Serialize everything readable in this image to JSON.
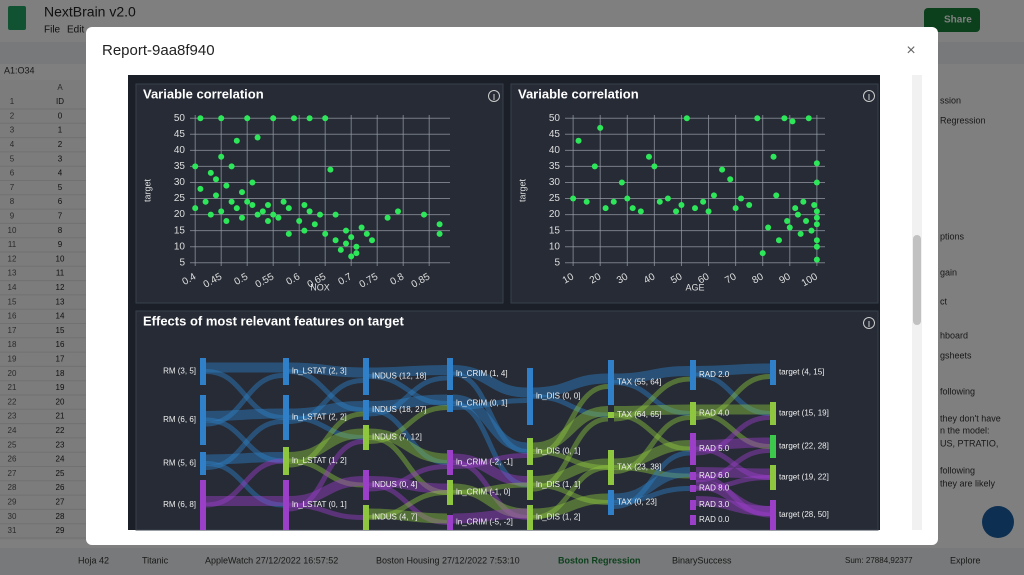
{
  "app": {
    "title": "NextBrain v2.0",
    "menu": [
      "File",
      "Edit"
    ],
    "share": "Share",
    "cell_ref": "A1:O34",
    "column": "A"
  },
  "sheet": {
    "rows": [
      1,
      2,
      3,
      4,
      5,
      6,
      7,
      8,
      9,
      10,
      11,
      12,
      13,
      14,
      15,
      16,
      17,
      18,
      19,
      20,
      21,
      22,
      23,
      24,
      25,
      26,
      27,
      28,
      29,
      30,
      31
    ],
    "ids": [
      "ID",
      0,
      1,
      2,
      3,
      4,
      5,
      6,
      7,
      8,
      9,
      10,
      11,
      12,
      13,
      14,
      15,
      16,
      17,
      18,
      19,
      20,
      21,
      22,
      23,
      24,
      25,
      26,
      27,
      28,
      29
    ]
  },
  "tabs": [
    "Hoja 42",
    "Titanic",
    "AppleWatch 27/12/2022 16:57:52",
    "Boston Housing 27/12/2022 7:53:10",
    "Boston Regression",
    "BinarySuccess"
  ],
  "status": {
    "sum": "Sum: 27884,92377",
    "explore": "Explore"
  },
  "side_panel": [
    "ssion",
    "Regression",
    "ptions",
    "gain",
    "ct",
    "hboard",
    "gsheets",
    "following",
    "they don't have",
    "n the model:",
    "US, PTRATIO,",
    "following",
    "they are likely"
  ],
  "modal": {
    "title": "Report-9aa8f940",
    "close": "×"
  },
  "charts": [
    {
      "type": "scatter",
      "title": "Variable correlation",
      "x_label": "NOX",
      "y_label": "target",
      "color": "#2ee65a",
      "grid": true,
      "xlim": [
        0.39,
        0.89
      ],
      "ylim": [
        4,
        51
      ],
      "xticks": [
        0.4,
        0.45,
        0.5,
        0.55,
        0.6,
        0.65,
        0.7,
        0.75,
        0.8,
        0.85
      ],
      "yticks": [
        5,
        10,
        15,
        20,
        25,
        30,
        35,
        40,
        45,
        50
      ],
      "x": [
        0.4,
        0.4,
        0.41,
        0.41,
        0.42,
        0.43,
        0.43,
        0.44,
        0.44,
        0.45,
        0.45,
        0.45,
        0.46,
        0.46,
        0.47,
        0.47,
        0.48,
        0.48,
        0.49,
        0.49,
        0.5,
        0.5,
        0.51,
        0.51,
        0.52,
        0.52,
        0.53,
        0.54,
        0.54,
        0.55,
        0.55,
        0.56,
        0.57,
        0.58,
        0.58,
        0.59,
        0.6,
        0.61,
        0.61,
        0.62,
        0.62,
        0.63,
        0.64,
        0.65,
        0.65,
        0.66,
        0.67,
        0.67,
        0.68,
        0.69,
        0.69,
        0.7,
        0.7,
        0.71,
        0.71,
        0.72,
        0.73,
        0.74,
        0.77,
        0.79,
        0.84,
        0.87,
        0.87
      ],
      "values": [
        35,
        22,
        50,
        28,
        24,
        33,
        20,
        26,
        31,
        50,
        21,
        38,
        18,
        29,
        24,
        35,
        22,
        43,
        27,
        19,
        50,
        24,
        23,
        30,
        20,
        44,
        21,
        23,
        18,
        50,
        20,
        19,
        24,
        14,
        22,
        50,
        18,
        23,
        15,
        21,
        50,
        17,
        20,
        50,
        14,
        34,
        12,
        20,
        9,
        15,
        11,
        7,
        13,
        8,
        10,
        16,
        14,
        12,
        19,
        21,
        20,
        17,
        14
      ]
    },
    {
      "type": "scatter",
      "title": "Variable correlation",
      "x_label": "AGE",
      "y_label": "target",
      "color": "#2ee65a",
      "grid": true,
      "xlim": [
        7,
        103
      ],
      "ylim": [
        4,
        51
      ],
      "xticks": [
        10,
        20,
        30,
        40,
        50,
        60,
        70,
        80,
        90,
        100
      ],
      "yticks": [
        5,
        10,
        15,
        20,
        25,
        30,
        35,
        40,
        45,
        50
      ],
      "x": [
        10,
        12,
        15,
        18,
        20,
        22,
        25,
        28,
        30,
        32,
        35,
        38,
        40,
        42,
        45,
        48,
        50,
        52,
        55,
        58,
        60,
        62,
        65,
        68,
        70,
        72,
        75,
        78,
        80,
        82,
        84,
        85,
        86,
        88,
        89,
        90,
        91,
        92,
        93,
        94,
        95,
        96,
        97,
        98,
        99,
        100,
        100,
        100,
        100,
        100,
        100,
        100,
        100
      ],
      "values": [
        25,
        43,
        24,
        35,
        47,
        22,
        24,
        30,
        25,
        22,
        21,
        38,
        35,
        24,
        25,
        21,
        23,
        50,
        22,
        24,
        21,
        26,
        34,
        31,
        22,
        25,
        23,
        50,
        8,
        16,
        38,
        26,
        12,
        50,
        18,
        16,
        49,
        22,
        20,
        14,
        24,
        18,
        50,
        15,
        23,
        10,
        12,
        19,
        30,
        36,
        21,
        17,
        6
      ]
    }
  ],
  "sankey": {
    "title": "Effects of most relevant features on target",
    "nodes": [
      {
        "label": "RM (3, 5]",
        "color": "#2f80c8"
      },
      {
        "label": "RM (6, 6]",
        "color": "#2f80c8"
      },
      {
        "label": "RM (5, 6]",
        "color": "#2f80c8"
      },
      {
        "label": "RM (6, 8]",
        "color": "#9b3fc9"
      },
      {
        "label": "ln_LSTAT (2, 3]",
        "color": "#2f80c8"
      },
      {
        "label": "ln_LSTAT (2, 2]",
        "color": "#2f80c8"
      },
      {
        "label": "ln_LSTAT (1, 2]",
        "color": "#8ec63f"
      },
      {
        "label": "ln_LSTAT (0, 1]",
        "color": "#9b3fc9"
      },
      {
        "label": "INDUS (12, 18]",
        "color": "#2f80c8"
      },
      {
        "label": "INDUS (18, 27]",
        "color": "#2f80c8"
      },
      {
        "label": "INDUS (7, 12]",
        "color": "#8ec63f"
      },
      {
        "label": "INDUS (0, 4]",
        "color": "#9b3fc9"
      },
      {
        "label": "INDUS (4, 7]",
        "color": "#8ec63f"
      },
      {
        "label": "ln_CRIM (1, 4]",
        "color": "#2f80c8"
      },
      {
        "label": "ln_CRIM (0, 1]",
        "color": "#2f80c8"
      },
      {
        "label": "ln_CRIM (-2, -1]",
        "color": "#9b3fc9"
      },
      {
        "label": "ln_CRIM (-1, 0]",
        "color": "#8ec63f"
      },
      {
        "label": "ln_CRIM (-5, -2]",
        "color": "#9b3fc9"
      },
      {
        "label": "ln_DIS (0, 0]",
        "color": "#2f80c8"
      },
      {
        "label": "ln_DIS (0, 1]",
        "color": "#8ec63f"
      },
      {
        "label": "ln_DIS (1, 1]",
        "color": "#8ec63f"
      },
      {
        "label": "ln_DIS (1, 2]",
        "color": "#8ec63f"
      },
      {
        "label": "TAX (55, 64]",
        "color": "#2f80c8"
      },
      {
        "label": "TAX (64, 65]",
        "color": "#8ec63f"
      },
      {
        "label": "TAX (23, 38]",
        "color": "#8ec63f"
      },
      {
        "label": "TAX (0, 23]",
        "color": "#2f80c8"
      },
      {
        "label": "RAD 2.0",
        "color": "#2f80c8"
      },
      {
        "label": "RAD 4.0",
        "color": "#8ec63f"
      },
      {
        "label": "RAD 5.0",
        "color": "#9b3fc9"
      },
      {
        "label": "RAD 6.0",
        "color": "#9b3fc9"
      },
      {
        "label": "RAD 8.0",
        "color": "#9b3fc9"
      },
      {
        "label": "RAD 3.0",
        "color": "#9b3fc9"
      },
      {
        "label": "RAD 0.0",
        "color": "#9b3fc9"
      },
      {
        "label": "target (4, 15]",
        "color": "#2f80c8"
      },
      {
        "label": "target (15, 19]",
        "color": "#8ec63f"
      },
      {
        "label": "target (22, 28]",
        "color": "#3cc84a"
      },
      {
        "label": "target (19, 22]",
        "color": "#8ec63f"
      },
      {
        "label": "target (28, 50]",
        "color": "#9b3fc9"
      }
    ]
  }
}
